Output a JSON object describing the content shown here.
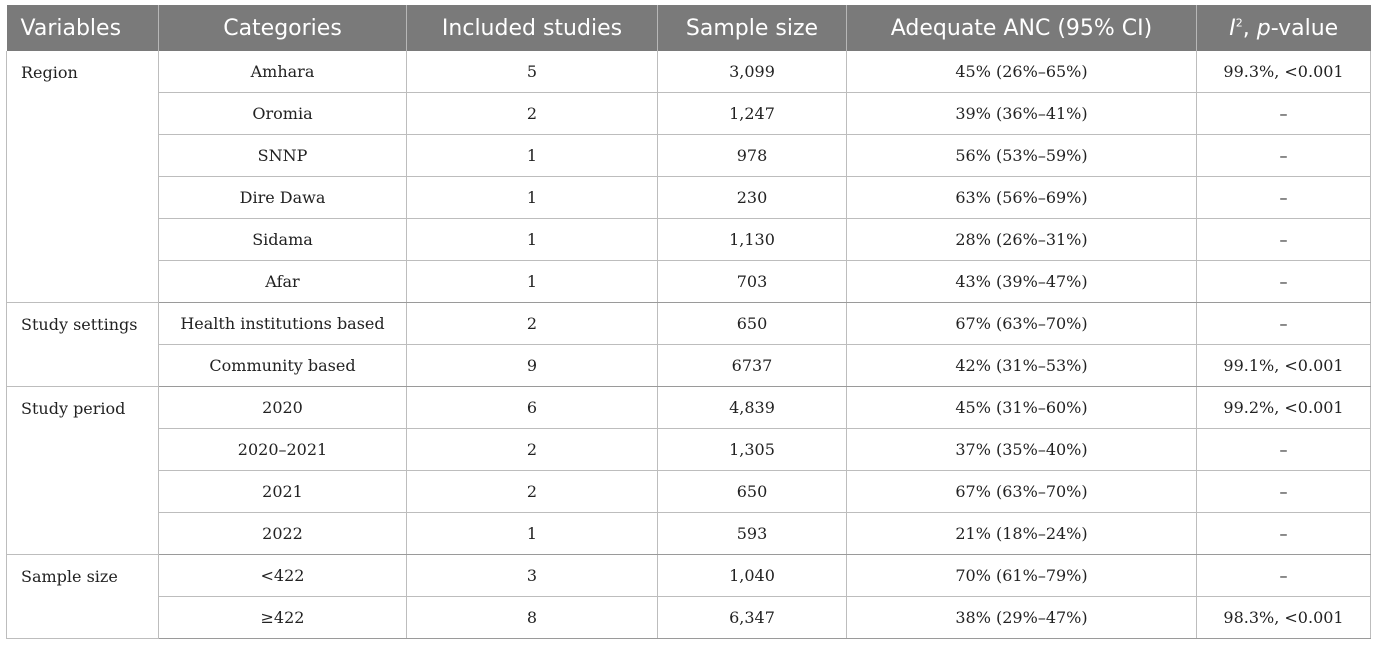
{
  "header": {
    "variables": "Variables",
    "categories": "Categories",
    "included_studies": "Included studies",
    "sample_size": "Sample size",
    "adequate_anc": "Adequate ANC (95% CI)",
    "i2_base": "I",
    "i2_sup": "2",
    "i2_sep": ", ",
    "p_italic": "p",
    "i2_rest": "-value"
  },
  "groups": [
    {
      "variable": "Region",
      "rows": [
        {
          "category": "Amhara",
          "studies": "5",
          "sample": "3,099",
          "anc": "45% (26%–65%)",
          "het": "99.3%, <0.001"
        },
        {
          "category": "Oromia",
          "studies": "2",
          "sample": "1,247",
          "anc": "39% (36%–41%)",
          "het": "–"
        },
        {
          "category": "SNNP",
          "studies": "1",
          "sample": "978",
          "anc": "56% (53%–59%)",
          "het": "–"
        },
        {
          "category": "Dire Dawa",
          "studies": "1",
          "sample": "230",
          "anc": "63% (56%–69%)",
          "het": "–"
        },
        {
          "category": "Sidama",
          "studies": "1",
          "sample": "1,130",
          "anc": "28% (26%–31%)",
          "het": "–"
        },
        {
          "category": "Afar",
          "studies": "1",
          "sample": "703",
          "anc": "43% (39%–47%)",
          "het": "–"
        }
      ]
    },
    {
      "variable": "Study settings",
      "rows": [
        {
          "category": "Health institutions based",
          "studies": "2",
          "sample": "650",
          "anc": "67% (63%–70%)",
          "het": "–"
        },
        {
          "category": "Community based",
          "studies": "9",
          "sample": "6737",
          "anc": "42% (31%–53%)",
          "het": "99.1%, <0.001"
        }
      ]
    },
    {
      "variable": "Study period",
      "rows": [
        {
          "category": "2020",
          "studies": "6",
          "sample": "4,839",
          "anc": "45% (31%–60%)",
          "het": "99.2%, <0.001"
        },
        {
          "category": "2020–2021",
          "studies": "2",
          "sample": "1,305",
          "anc": "37% (35%–40%)",
          "het": "–"
        },
        {
          "category": "2021",
          "studies": "2",
          "sample": "650",
          "anc": "67% (63%–70%)",
          "het": "–"
        },
        {
          "category": "2022",
          "studies": "1",
          "sample": "593",
          "anc": "21% (18%–24%)",
          "het": "–"
        }
      ]
    },
    {
      "variable": "Sample size",
      "rows": [
        {
          "category": "<422",
          "studies": "3",
          "sample": "1,040",
          "anc": "70% (61%–79%)",
          "het": "–"
        },
        {
          "category": "≥422",
          "studies": "8",
          "sample": "6,347",
          "anc": "38% (29%–47%)",
          "het": "98.3%, <0.001"
        }
      ]
    }
  ]
}
